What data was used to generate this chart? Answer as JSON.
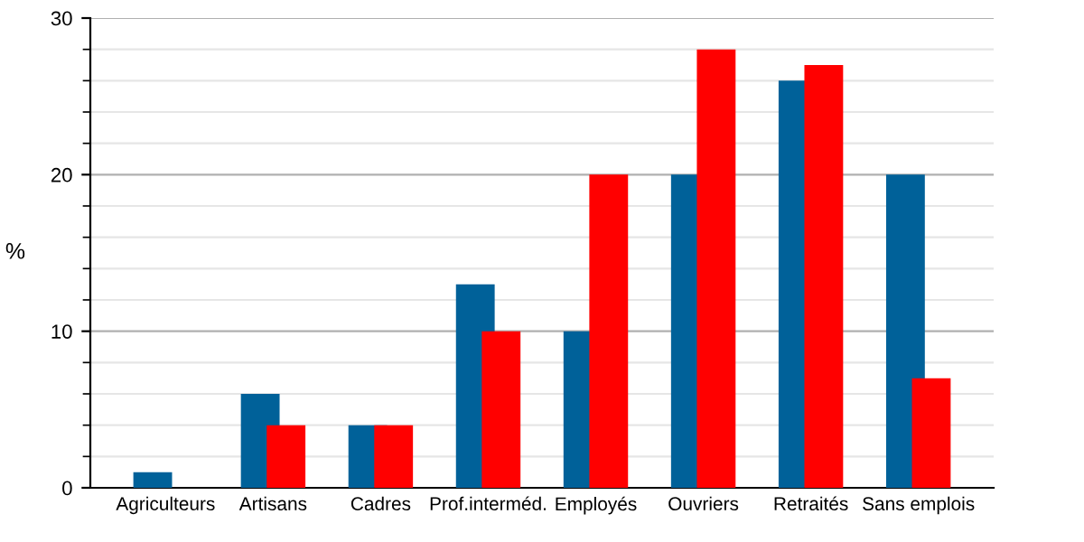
{
  "chart_data": {
    "type": "bar",
    "ylabel": "%",
    "categories": [
      "Agriculteurs",
      "Artisans",
      "Cadres",
      "Prof.interméd.",
      "Employés",
      "Ouvriers",
      "Retraités",
      "Sans emplois"
    ],
    "series": [
      {
        "color": "#006199",
        "values": [
          1,
          6,
          4,
          13,
          10,
          20,
          26,
          20
        ]
      },
      {
        "color": "#ff0000",
        "values": [
          0,
          4,
          4,
          10,
          20,
          28,
          27,
          7
        ]
      }
    ],
    "ylim": [
      0,
      30
    ],
    "yticks": [
      0,
      10,
      20,
      30
    ],
    "grid": "y",
    "legend": false
  }
}
